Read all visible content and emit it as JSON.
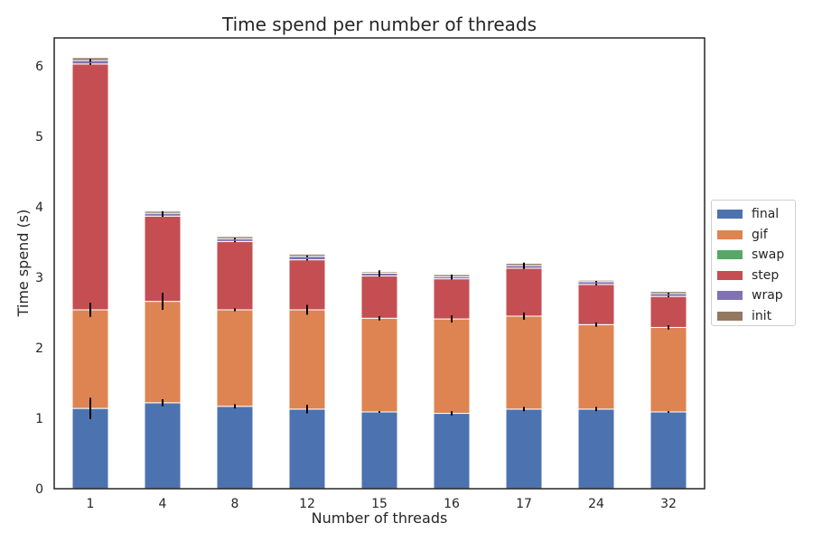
{
  "chart_data": {
    "type": "bar",
    "stacked": true,
    "title": "Time spend per number of threads",
    "xlabel": "Number of threads",
    "ylabel": "Time spend (s)",
    "ylim": [
      0,
      6.4
    ],
    "yticks": [
      "0",
      "1",
      "2",
      "3",
      "4",
      "5",
      "6"
    ],
    "categories": [
      "1",
      "4",
      "8",
      "12",
      "15",
      "16",
      "17",
      "24",
      "32"
    ],
    "legend_position": "center-right",
    "grid": false,
    "series": [
      {
        "name": "final",
        "color": "#4c72b0",
        "values": [
          1.14,
          1.22,
          1.17,
          1.13,
          1.09,
          1.07,
          1.13,
          1.13,
          1.09
        ],
        "errors": [
          0.15,
          0.05,
          0.03,
          0.06,
          0.01,
          0.03,
          0.03,
          0.03,
          0.01
        ]
      },
      {
        "name": "gif",
        "color": "#dd8452",
        "values": [
          1.4,
          1.44,
          1.37,
          1.41,
          1.33,
          1.34,
          1.32,
          1.2,
          1.2
        ],
        "errors": [
          0.1,
          0.12,
          0.02,
          0.07,
          0.03,
          0.05,
          0.05,
          0.03,
          0.03
        ]
      },
      {
        "name": "swap",
        "color": "#55a868",
        "values": [
          0.0,
          0.0,
          0.0,
          0.0,
          0.0,
          0.0,
          0.0,
          0.0,
          0.0
        ],
        "errors": [
          0,
          0,
          0,
          0,
          0,
          0,
          0,
          0,
          0
        ]
      },
      {
        "name": "step",
        "color": "#c44e52",
        "values": [
          3.49,
          1.21,
          0.97,
          0.71,
          0.6,
          0.57,
          0.68,
          0.57,
          0.44
        ],
        "errors": [
          0.01,
          0.01,
          0.01,
          0.01,
          0.01,
          0.01,
          0.01,
          0.01,
          0.01
        ]
      },
      {
        "name": "wrap",
        "color": "#8172b3",
        "values": [
          0.05,
          0.04,
          0.04,
          0.05,
          0.04,
          0.03,
          0.04,
          0.04,
          0.04
        ],
        "errors": [
          0.02,
          0.03,
          0.01,
          0.01,
          0.04,
          0.03,
          0.04,
          0.01,
          0.01
        ]
      },
      {
        "name": "init",
        "color": "#937860",
        "values": [
          0.04,
          0.03,
          0.03,
          0.03,
          0.02,
          0.03,
          0.03,
          0.02,
          0.03
        ],
        "errors": [
          0,
          0,
          0,
          0,
          0,
          0,
          0,
          0,
          0
        ]
      }
    ]
  }
}
